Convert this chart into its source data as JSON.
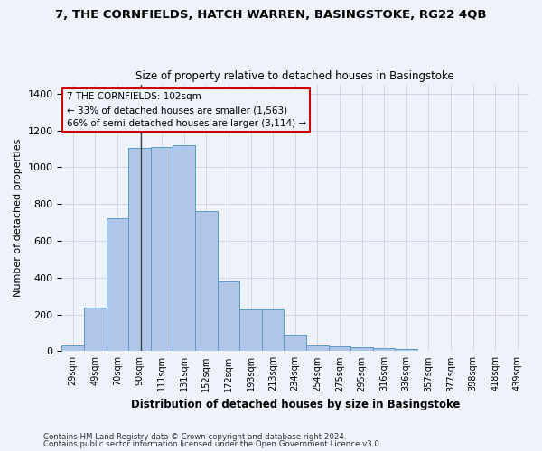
{
  "title1": "7, THE CORNFIELDS, HATCH WARREN, BASINGSTOKE, RG22 4QB",
  "title2": "Size of property relative to detached houses in Basingstoke",
  "xlabel": "Distribution of detached houses by size in Basingstoke",
  "ylabel": "Number of detached properties",
  "categories": [
    "29sqm",
    "49sqm",
    "70sqm",
    "90sqm",
    "111sqm",
    "131sqm",
    "152sqm",
    "172sqm",
    "193sqm",
    "213sqm",
    "234sqm",
    "254sqm",
    "275sqm",
    "295sqm",
    "316sqm",
    "336sqm",
    "357sqm",
    "377sqm",
    "398sqm",
    "418sqm",
    "439sqm"
  ],
  "values": [
    30,
    235,
    720,
    1105,
    1110,
    1120,
    760,
    380,
    225,
    225,
    90,
    30,
    25,
    20,
    15,
    10,
    0,
    0,
    0,
    0,
    0
  ],
  "bar_color": "#aec6e8",
  "bar_edge_color": "#5a9bc5",
  "annotation_box_line1": "7 THE CORNFIELDS: 102sqm",
  "annotation_box_line2": "← 33% of detached houses are smaller (1,563)",
  "annotation_box_line3": "66% of semi-detached houses are larger (3,114) →",
  "ylim": [
    0,
    1450
  ],
  "yticks": [
    0,
    200,
    400,
    600,
    800,
    1000,
    1200,
    1400
  ],
  "footer1": "Contains HM Land Registry data © Crown copyright and database right 2024.",
  "footer2": "Contains public sector information licensed under the Open Government Licence v3.0.",
  "bg_color": "#eef2fb",
  "grid_color": "#c8d0e0",
  "annotation_box_color": "#cc0000"
}
